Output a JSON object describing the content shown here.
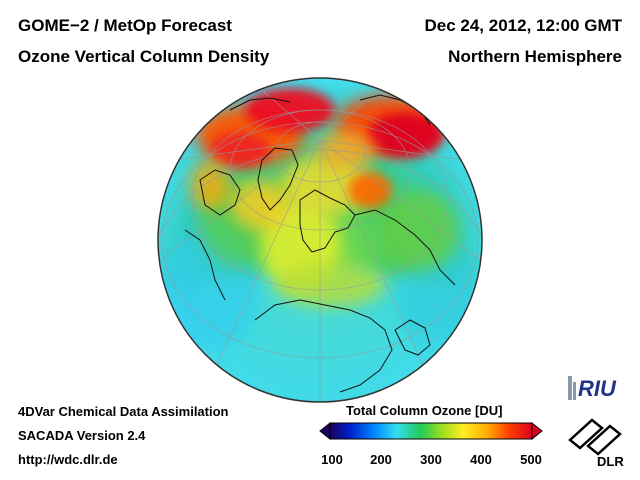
{
  "header": {
    "title_line1": "GOME−2 / MetOp Forecast",
    "title_line2": "Ozone Vertical Column Density",
    "date": "Dec 24, 2012, 12:00 GMT",
    "region": "Northern Hemisphere"
  },
  "footer": {
    "line1": "4DVar Chemical Data Assimilation",
    "line2": "SACADA Version 2.4",
    "line3": "http://wdc.dlr.de"
  },
  "colorbar": {
    "title": "Total Column Ozone [DU]",
    "ticks": [
      "100",
      "200",
      "300",
      "400",
      "500"
    ],
    "min": 100,
    "max": 500,
    "colors": [
      "#1a0060",
      "#0033ff",
      "#00aaff",
      "#33ddee",
      "#22cc55",
      "#99dd22",
      "#ffee22",
      "#ffaa00",
      "#ff4400",
      "#dd0022"
    ]
  },
  "logos": {
    "riu": "RIU",
    "dlr": "DLR"
  },
  "map": {
    "projection": "orthographic",
    "hemisphere": "Northern Hemisphere"
  }
}
